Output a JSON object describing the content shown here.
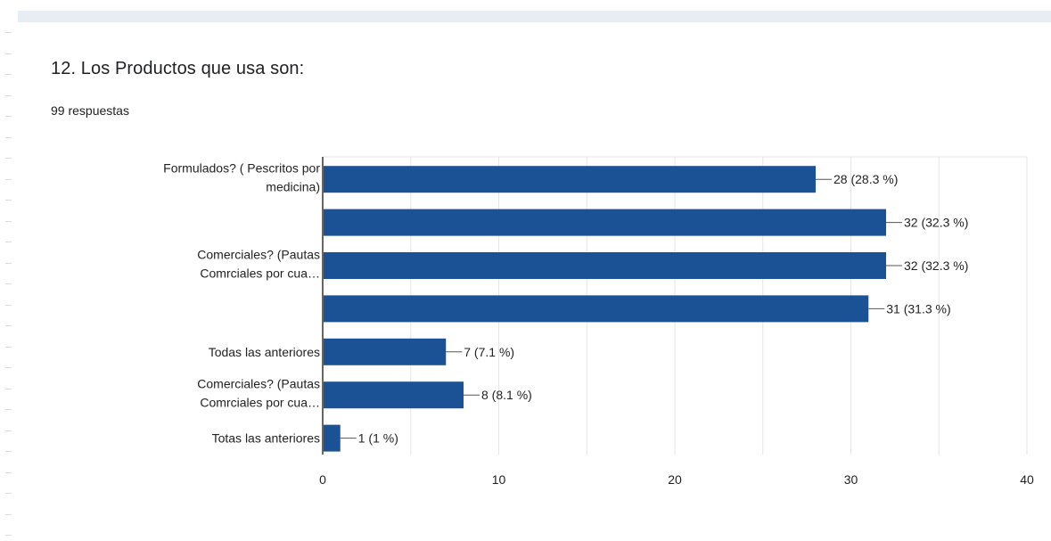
{
  "question": {
    "title": "12. Los Productos que usa son:",
    "responses": "99 respuestas"
  },
  "colors": {
    "bar": "#1b5195",
    "grid": "#e6e6e6",
    "axis": "#333333",
    "text": "#222222",
    "top_strip": "#e8edf4"
  },
  "chart_data": {
    "type": "bar",
    "orientation": "horizontal",
    "categories": [
      [
        "Formulados? ( Pescritos por",
        "medicina)"
      ],
      [],
      [
        "Comerciales? (Pautas",
        "Comrciales por cua…"
      ],
      [],
      [
        "Todas las anteriores"
      ],
      [
        "Comerciales? (Pautas",
        "Comrciales por cua…"
      ],
      [
        "Totas las anteriores"
      ]
    ],
    "values": [
      28,
      32,
      32,
      31,
      7,
      8,
      1
    ],
    "data_labels": [
      "28 (28.3 %)",
      "32 (32.3 %)",
      "32 (32.3 %)",
      "31 (31.3 %)",
      "7 (7.1 %)",
      "8 (8.1 %)",
      "1 (1 %)"
    ],
    "xlim": [
      0,
      40
    ],
    "x_ticks": [
      0,
      10,
      20,
      30,
      40
    ],
    "grid": true,
    "legend": "none"
  }
}
